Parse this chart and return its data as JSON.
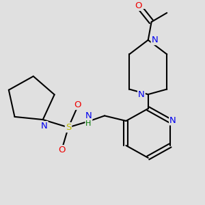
{
  "background_color": "#e0e0e0",
  "bond_color": "#000000",
  "atom_colors": {
    "N": "#0000ee",
    "O": "#ee0000",
    "S": "#bbbb00",
    "H": "#007700",
    "C": "#000000"
  },
  "font_size": 9.5,
  "figsize": [
    3.0,
    3.0
  ],
  "dpi": 100
}
